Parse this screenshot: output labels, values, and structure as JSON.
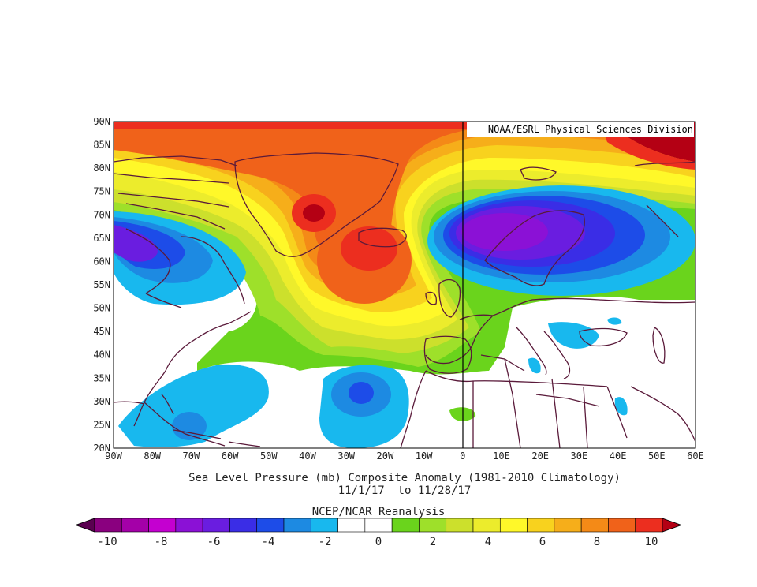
{
  "credit": "NOAA/ESRL Physical Sciences Division",
  "title_line1": "Sea Level Pressure (mb) Composite Anomaly (1981-2010 Climatology)",
  "title_line2": "11/1/17  to 11/28/17",
  "colorbar_title": "NCEP/NCAR Reanalysis",
  "lat_labels": [
    "90N",
    "85N",
    "80N",
    "75N",
    "70N",
    "65N",
    "60N",
    "55N",
    "50N",
    "45N",
    "40N",
    "35N",
    "30N",
    "25N",
    "20N"
  ],
  "lon_labels": [
    "90W",
    "80W",
    "70W",
    "60W",
    "50W",
    "40W",
    "30W",
    "20W",
    "10W",
    "0",
    "10E",
    "20E",
    "30E",
    "40E",
    "50E",
    "60E"
  ],
  "colorbar_labels": [
    "-10",
    "-8",
    "-6",
    "-4",
    "-2",
    "0",
    "2",
    "4",
    "6",
    "8",
    "10"
  ],
  "colorbar_colors": [
    "#8a007f",
    "#a400a8",
    "#c400d0",
    "#8b11d6",
    "#6a1de0",
    "#3a2de6",
    "#1d4ce8",
    "#1d8ae2",
    "#18b8ee",
    "#ffffff",
    "#ffffff",
    "#6ad41c",
    "#9ee02a",
    "#cce02c",
    "#ecec2c",
    "#fff829",
    "#f8d21e",
    "#f6ae1a",
    "#f48a17",
    "#f0621a",
    "#ec2e1f"
  ],
  "colorbar_end_low": "#5a0050",
  "colorbar_end_high": "#b40014",
  "map": {
    "lon_min": -90,
    "lon_max": 60,
    "lat_min": 20,
    "lat_max": 90
  }
}
